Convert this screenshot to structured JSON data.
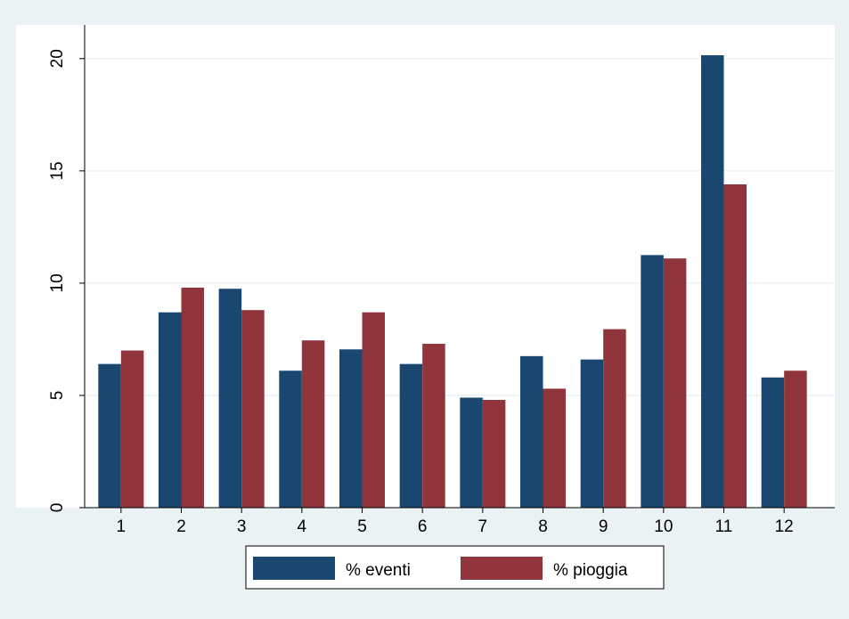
{
  "chart_data": {
    "type": "bar",
    "categories": [
      "1",
      "2",
      "3",
      "4",
      "5",
      "6",
      "7",
      "8",
      "9",
      "10",
      "11",
      "12"
    ],
    "series": [
      {
        "name": "% eventi",
        "color": "#1a476f",
        "values": [
          6.4,
          8.7,
          9.75,
          6.1,
          7.05,
          6.4,
          4.9,
          6.75,
          6.6,
          11.25,
          20.15,
          5.8
        ]
      },
      {
        "name": "% pioggia",
        "color": "#90353b",
        "values": [
          7.0,
          9.8,
          8.8,
          7.45,
          8.7,
          7.3,
          4.8,
          5.3,
          7.95,
          11.1,
          14.4,
          6.1
        ]
      }
    ],
    "yticks": [
      "0",
      "5",
      "10",
      "15",
      "20"
    ],
    "ylim": [
      0,
      21.5
    ],
    "title": "",
    "xlabel": "",
    "ylabel": "",
    "grid": true,
    "legend_position": "bottom",
    "colors": {
      "background": "#eaf2f3",
      "plot_background": "#ffffff",
      "gridline": "#eaf2f3",
      "axis": "#000000"
    }
  }
}
